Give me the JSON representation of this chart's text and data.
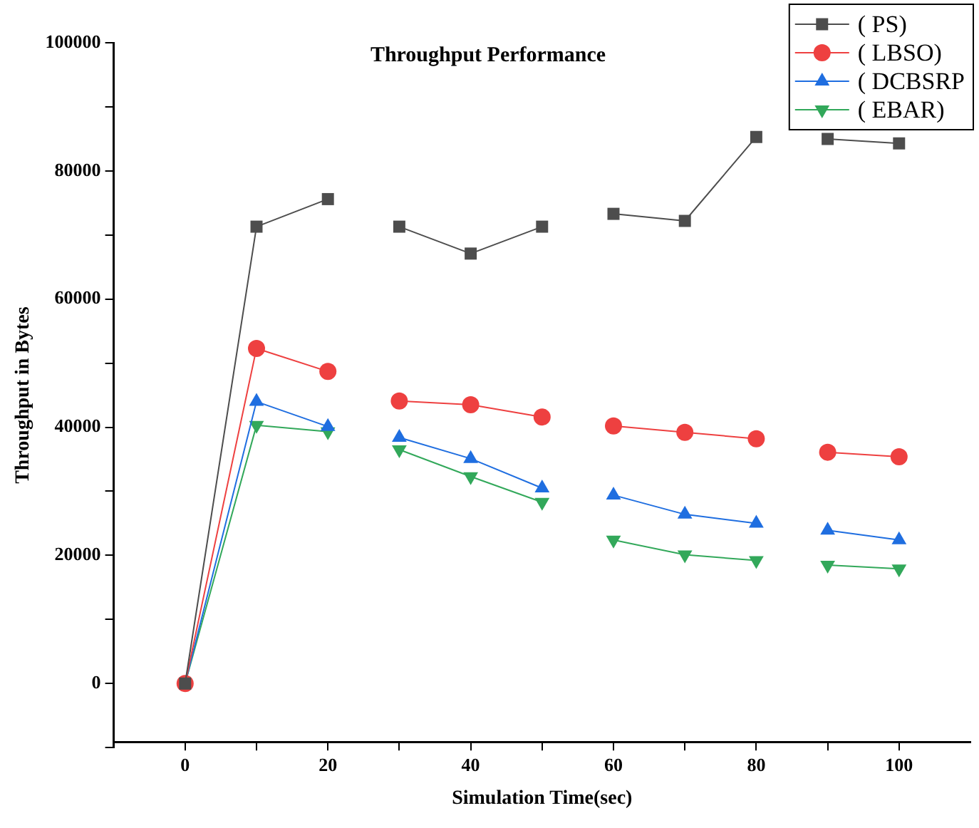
{
  "chart_data": {
    "type": "line",
    "title": "Throughput Performance",
    "xlabel": "Simulation Time(sec)",
    "ylabel": "Throughput in Bytes",
    "x": [
      0,
      10,
      20,
      25,
      30,
      40,
      50,
      55,
      60,
      70,
      80,
      85,
      90,
      100
    ],
    "series": [
      {
        "name": "( PS)",
        "color": "#4d4d4d",
        "marker": "square",
        "values": [
          0,
          71300,
          75600,
          null,
          71300,
          67100,
          71300,
          null,
          73300,
          72200,
          85300,
          null,
          85000,
          84300
        ]
      },
      {
        "name": "( LBSO)",
        "color": "#ee4040",
        "marker": "circle",
        "values": [
          0,
          52300,
          48700,
          null,
          44100,
          43500,
          41600,
          null,
          40200,
          39200,
          38200,
          null,
          36100,
          35400
        ]
      },
      {
        "name": "( DCBSRP",
        "color": "#1f6ee0",
        "marker": "triangle",
        "values": [
          0,
          44000,
          40100,
          null,
          38400,
          35100,
          30500,
          null,
          29400,
          26400,
          25000,
          null,
          23900,
          22400
        ]
      },
      {
        "name": "( EBAR)",
        "color": "#32a85a",
        "marker": "triangle-down",
        "values": [
          0,
          40300,
          39300,
          null,
          36500,
          32300,
          28300,
          null,
          22400,
          20100,
          19200,
          null,
          18500,
          17900
        ]
      }
    ],
    "xlim": [
      -10,
      110
    ],
    "xticks": [
      0,
      {
        "value": 10,
        "label": null
      },
      20,
      {
        "value": 30,
        "label": null
      },
      40,
      {
        "value": 50,
        "label": null
      },
      60,
      {
        "value": 70,
        "label": null
      },
      80,
      {
        "value": 90,
        "label": null
      },
      100
    ],
    "ylim": [
      -10000,
      100000
    ],
    "yticks": [
      {
        "value": -10000,
        "label": null
      },
      0,
      {
        "value": 10000,
        "label": null
      },
      20000,
      {
        "value": 30000,
        "label": null
      },
      40000,
      {
        "value": 50000,
        "label": null
      },
      60000,
      {
        "value": 70000,
        "label": null
      },
      80000,
      {
        "value": 90000,
        "label": null
      },
      100000
    ],
    "grid": false,
    "legend": "top right",
    "line_style": "solid"
  }
}
